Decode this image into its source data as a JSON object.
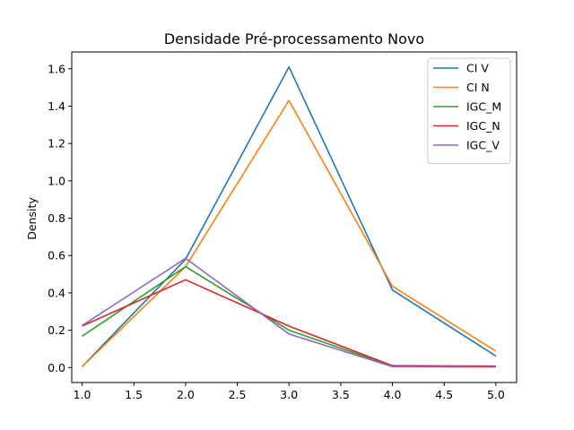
{
  "chart_data": {
    "type": "line",
    "title": "Densidade Pré-processamento Novo",
    "xlabel": "",
    "ylabel": "Density",
    "x": [
      1.0,
      2.0,
      3.0,
      4.0,
      5.0
    ],
    "xlim": [
      0.9,
      5.2
    ],
    "ylim": [
      -0.08,
      1.69
    ],
    "xticks": [
      "1.0",
      "1.5",
      "2.0",
      "2.5",
      "3.0",
      "3.5",
      "4.0",
      "4.5",
      "5.0"
    ],
    "yticks": [
      "0.0",
      "0.2",
      "0.4",
      "0.6",
      "0.8",
      "1.0",
      "1.2",
      "1.4",
      "1.6"
    ],
    "legend_position": "top-right",
    "grid": false,
    "series": [
      {
        "name": "CI V",
        "color": "#1f77b4",
        "values": [
          0.005,
          0.58,
          1.61,
          0.415,
          0.062
        ]
      },
      {
        "name": "CI N",
        "color": "#ff7f0e",
        "values": [
          0.005,
          0.54,
          1.43,
          0.435,
          0.088
        ]
      },
      {
        "name": "IGC_M",
        "color": "#2ca02c",
        "values": [
          0.168,
          0.54,
          0.2,
          0.008,
          0.005
        ]
      },
      {
        "name": "IGC_N",
        "color": "#d62728",
        "values": [
          0.222,
          0.47,
          0.222,
          0.01,
          0.008
        ]
      },
      {
        "name": "IGC_V",
        "color": "#9467bd",
        "values": [
          0.225,
          0.585,
          0.18,
          0.005,
          0.003
        ]
      }
    ]
  }
}
